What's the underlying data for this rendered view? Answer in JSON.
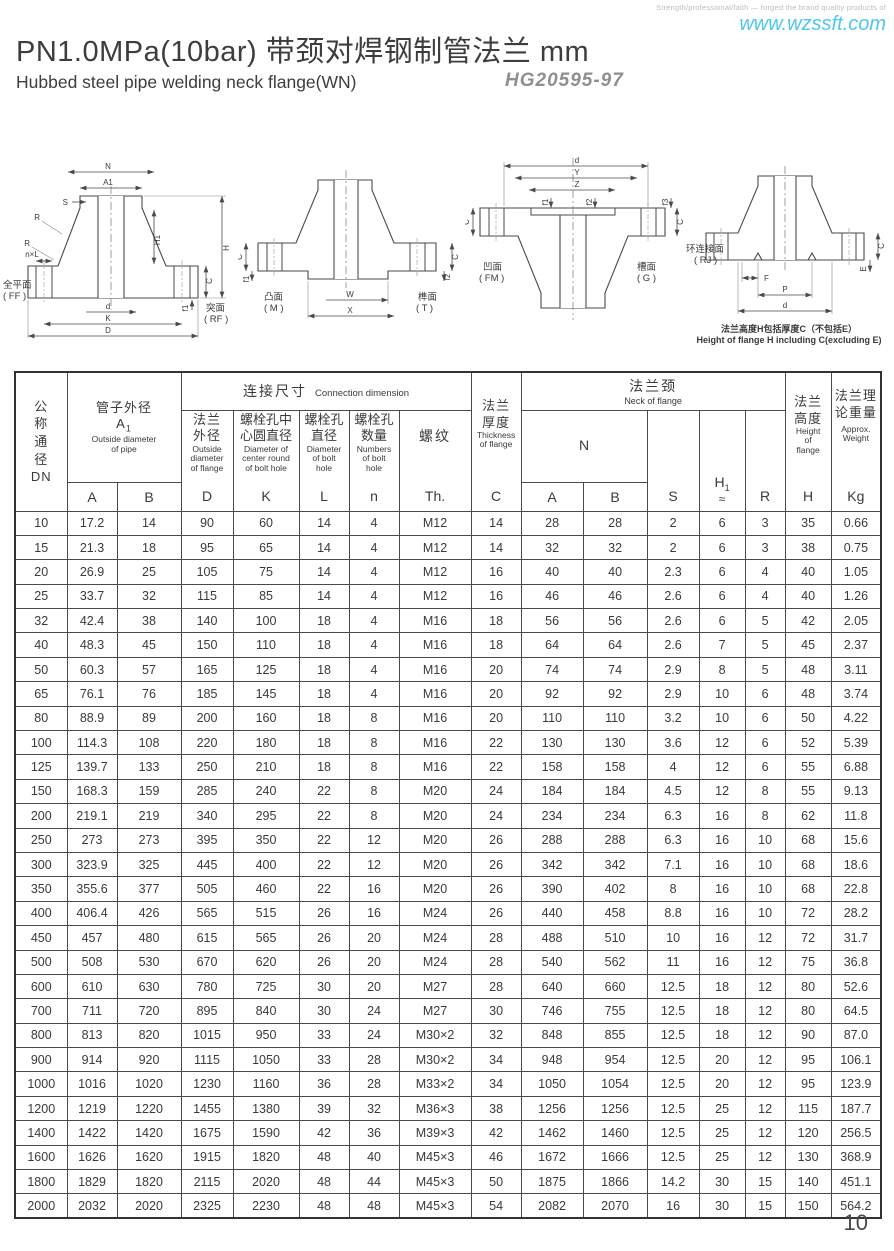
{
  "page": {
    "tagline": "Strength/professional/faith — forged the brand quality products of",
    "website": "www.wzssft.com",
    "title": "PN1.0MPa(10bar) 带颈对焊钢制管法兰  mm",
    "subtitle": "Hubbed steel pipe welding neck flange(WN)",
    "standard": "HG20595-97",
    "page_number": "10",
    "colors": {
      "website_blue": "#4ec7ef",
      "standard_gray": "#8f8f8f"
    }
  },
  "drawings": {
    "d1": {
      "face_left": "全平面",
      "face_left_code": "( FF )",
      "face_right": "突面",
      "face_right_code": "( RF )",
      "dims": {
        "N": "N",
        "A1": "A1",
        "S": "S",
        "R": "R",
        "nxL": "n×L",
        "H1": "H1",
        "H": "H",
        "C": "C",
        "f1": "f1",
        "d": "d",
        "K": "K",
        "D": "D"
      }
    },
    "d2": {
      "face_left": "凸面",
      "face_left_code": "( M )",
      "face_right": "榫面",
      "face_right_code": "( T )",
      "dims": {
        "C": "C",
        "f1": "f1",
        "W": "W",
        "X": "X",
        "f2": "f2"
      }
    },
    "d3": {
      "face_left": "凹面",
      "face_left_code": "( FM )",
      "face_right": "槽面",
      "face_right_code": "( G )",
      "dims": {
        "d": "d",
        "Y": "Y",
        "Z": "Z",
        "C": "C",
        "f1": "f1",
        "f2": "f2",
        "f3": "f3"
      }
    },
    "d4": {
      "label": "环连接面",
      "label_code": "( RJ )",
      "dims": {
        "F": "F",
        "P": "P",
        "d": "d",
        "C": "C",
        "E": "E"
      },
      "caption_cn": "法兰高度H包括厚度C（不包括E）",
      "caption_en": "Height of flange H including C(excluding E)"
    }
  },
  "table": {
    "header": {
      "dn": {
        "stack": "公\n称\n通\n径\nDN"
      },
      "pipe_od": {
        "cn": "管子外径",
        "sub_main": "A",
        "sub_digit": "1",
        "en": "Outside diameter\nof pipe",
        "a": "A",
        "b": "B"
      },
      "conn": {
        "cn": "连接尺寸",
        "en": "Connection dimension"
      },
      "flange_od": {
        "cn": "法兰\n外径",
        "en": "Outside\ndiameter\nof flange",
        "code": "D"
      },
      "bolt_circle": {
        "cn": "螺栓孔中\n心圆直径",
        "en": "Diameter of\ncenter round\nof bolt hole",
        "code": "K"
      },
      "bolt_hole_d": {
        "cn": "螺栓孔\n直径",
        "en": "Diameter\nof bolt\nhole",
        "code": "L"
      },
      "bolt_hole_n": {
        "cn": "螺栓孔\n数量",
        "en": "Numbers\nof bolt\nhole",
        "code": "n"
      },
      "thread": {
        "cn": "螺纹",
        "code": "Th."
      },
      "thickness": {
        "cn": "法兰\n厚度",
        "en": "Thickness\nof flange",
        "code": "C"
      },
      "neck": {
        "cn": "法兰颈",
        "en": "Neck of flange",
        "n": "N",
        "a": "A",
        "b": "B",
        "s": "S",
        "h1_main": "H",
        "h1_sub": "1",
        "h1_approx": "≈",
        "r": "R"
      },
      "height": {
        "cn": "法兰\n高度",
        "en": "Height\nof\nflange",
        "code": "H"
      },
      "weight": {
        "cn": "法兰理\n论重量",
        "en": "Approx.\nWeight",
        "code": "Kg"
      }
    },
    "rows": [
      [
        "10",
        "17.2",
        "14",
        "90",
        "60",
        "14",
        "4",
        "M12",
        "14",
        "28",
        "28",
        "2",
        "6",
        "3",
        "35",
        "0.66"
      ],
      [
        "15",
        "21.3",
        "18",
        "95",
        "65",
        "14",
        "4",
        "M12",
        "14",
        "32",
        "32",
        "2",
        "6",
        "3",
        "38",
        "0.75"
      ],
      [
        "20",
        "26.9",
        "25",
        "105",
        "75",
        "14",
        "4",
        "M12",
        "16",
        "40",
        "40",
        "2.3",
        "6",
        "4",
        "40",
        "1.05"
      ],
      [
        "25",
        "33.7",
        "32",
        "115",
        "85",
        "14",
        "4",
        "M12",
        "16",
        "46",
        "46",
        "2.6",
        "6",
        "4",
        "40",
        "1.26"
      ],
      [
        "32",
        "42.4",
        "38",
        "140",
        "100",
        "18",
        "4",
        "M16",
        "18",
        "56",
        "56",
        "2.6",
        "6",
        "5",
        "42",
        "2.05"
      ],
      [
        "40",
        "48.3",
        "45",
        "150",
        "110",
        "18",
        "4",
        "M16",
        "18",
        "64",
        "64",
        "2.6",
        "7",
        "5",
        "45",
        "2.37"
      ],
      [
        "50",
        "60.3",
        "57",
        "165",
        "125",
        "18",
        "4",
        "M16",
        "20",
        "74",
        "74",
        "2.9",
        "8",
        "5",
        "48",
        "3.11"
      ],
      [
        "65",
        "76.1",
        "76",
        "185",
        "145",
        "18",
        "4",
        "M16",
        "20",
        "92",
        "92",
        "2.9",
        "10",
        "6",
        "48",
        "3.74"
      ],
      [
        "80",
        "88.9",
        "89",
        "200",
        "160",
        "18",
        "8",
        "M16",
        "20",
        "110",
        "110",
        "3.2",
        "10",
        "6",
        "50",
        "4.22"
      ],
      [
        "100",
        "114.3",
        "108",
        "220",
        "180",
        "18",
        "8",
        "M16",
        "22",
        "130",
        "130",
        "3.6",
        "12",
        "6",
        "52",
        "5.39"
      ],
      [
        "125",
        "139.7",
        "133",
        "250",
        "210",
        "18",
        "8",
        "M16",
        "22",
        "158",
        "158",
        "4",
        "12",
        "6",
        "55",
        "6.88"
      ],
      [
        "150",
        "168.3",
        "159",
        "285",
        "240",
        "22",
        "8",
        "M20",
        "24",
        "184",
        "184",
        "4.5",
        "12",
        "8",
        "55",
        "9.13"
      ],
      [
        "200",
        "219.1",
        "219",
        "340",
        "295",
        "22",
        "8",
        "M20",
        "24",
        "234",
        "234",
        "6.3",
        "16",
        "8",
        "62",
        "11.8"
      ],
      [
        "250",
        "273",
        "273",
        "395",
        "350",
        "22",
        "12",
        "M20",
        "26",
        "288",
        "288",
        "6.3",
        "16",
        "10",
        "68",
        "15.6"
      ],
      [
        "300",
        "323.9",
        "325",
        "445",
        "400",
        "22",
        "12",
        "M20",
        "26",
        "342",
        "342",
        "7.1",
        "16",
        "10",
        "68",
        "18.6"
      ],
      [
        "350",
        "355.6",
        "377",
        "505",
        "460",
        "22",
        "16",
        "M20",
        "26",
        "390",
        "402",
        "8",
        "16",
        "10",
        "68",
        "22.8"
      ],
      [
        "400",
        "406.4",
        "426",
        "565",
        "515",
        "26",
        "16",
        "M24",
        "26",
        "440",
        "458",
        "8.8",
        "16",
        "10",
        "72",
        "28.2"
      ],
      [
        "450",
        "457",
        "480",
        "615",
        "565",
        "26",
        "20",
        "M24",
        "28",
        "488",
        "510",
        "10",
        "16",
        "12",
        "72",
        "31.7"
      ],
      [
        "500",
        "508",
        "530",
        "670",
        "620",
        "26",
        "20",
        "M24",
        "28",
        "540",
        "562",
        "11",
        "16",
        "12",
        "75",
        "36.8"
      ],
      [
        "600",
        "610",
        "630",
        "780",
        "725",
        "30",
        "20",
        "M27",
        "28",
        "640",
        "660",
        "12.5",
        "18",
        "12",
        "80",
        "52.6"
      ],
      [
        "700",
        "711",
        "720",
        "895",
        "840",
        "30",
        "24",
        "M27",
        "30",
        "746",
        "755",
        "12.5",
        "18",
        "12",
        "80",
        "64.5"
      ],
      [
        "800",
        "813",
        "820",
        "1015",
        "950",
        "33",
        "24",
        "M30×2",
        "32",
        "848",
        "855",
        "12.5",
        "18",
        "12",
        "90",
        "87.0"
      ],
      [
        "900",
        "914",
        "920",
        "1115",
        "1050",
        "33",
        "28",
        "M30×2",
        "34",
        "948",
        "954",
        "12.5",
        "20",
        "12",
        "95",
        "106.1"
      ],
      [
        "1000",
        "1016",
        "1020",
        "1230",
        "1160",
        "36",
        "28",
        "M33×2",
        "34",
        "1050",
        "1054",
        "12.5",
        "20",
        "12",
        "95",
        "123.9"
      ],
      [
        "1200",
        "1219",
        "1220",
        "1455",
        "1380",
        "39",
        "32",
        "M36×3",
        "38",
        "1256",
        "1256",
        "12.5",
        "25",
        "12",
        "115",
        "187.7"
      ],
      [
        "1400",
        "1422",
        "1420",
        "1675",
        "1590",
        "42",
        "36",
        "M39×3",
        "42",
        "1462",
        "1460",
        "12.5",
        "25",
        "12",
        "120",
        "256.5"
      ],
      [
        "1600",
        "1626",
        "1620",
        "1915",
        "1820",
        "48",
        "40",
        "M45×3",
        "46",
        "1672",
        "1666",
        "12.5",
        "25",
        "12",
        "130",
        "368.9"
      ],
      [
        "1800",
        "1829",
        "1820",
        "2115",
        "2020",
        "48",
        "44",
        "M45×3",
        "50",
        "1875",
        "1866",
        "14.2",
        "30",
        "15",
        "140",
        "451.1"
      ],
      [
        "2000",
        "2032",
        "2020",
        "2325",
        "2230",
        "48",
        "48",
        "M45×3",
        "54",
        "2082",
        "2070",
        "16",
        "30",
        "15",
        "150",
        "564.2"
      ]
    ]
  }
}
